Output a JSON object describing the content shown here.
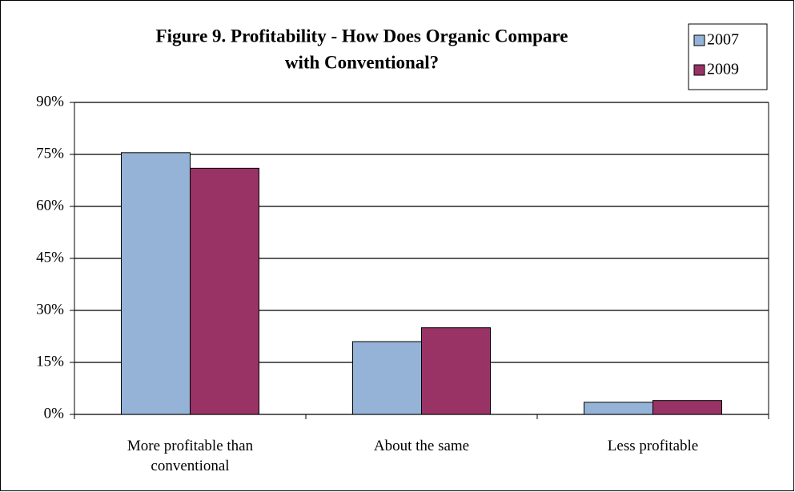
{
  "chart_data": {
    "type": "bar",
    "title": [
      "Figure 9.  Profitability - How Does Organic Compare",
      "with Conventional?"
    ],
    "categories": [
      "More profitable than conventional",
      "About the same",
      "Less profitable"
    ],
    "series": [
      {
        "name": "2007",
        "color": "#95b3d7",
        "values": [
          75.5,
          21,
          3.5
        ]
      },
      {
        "name": "2009",
        "color": "#993366",
        "values": [
          71,
          25,
          4
        ]
      }
    ],
    "ylim": [
      0,
      90
    ],
    "yticks": [
      {
        "value": 0,
        "label": "0%"
      },
      {
        "value": 15,
        "label": "15%"
      },
      {
        "value": 30,
        "label": "30%"
      },
      {
        "value": 45,
        "label": "45%"
      },
      {
        "value": 60,
        "label": "60%"
      },
      {
        "value": 75,
        "label": "75%"
      },
      {
        "value": 90,
        "label": "90%"
      }
    ],
    "grid": true,
    "legend": "top-right"
  }
}
